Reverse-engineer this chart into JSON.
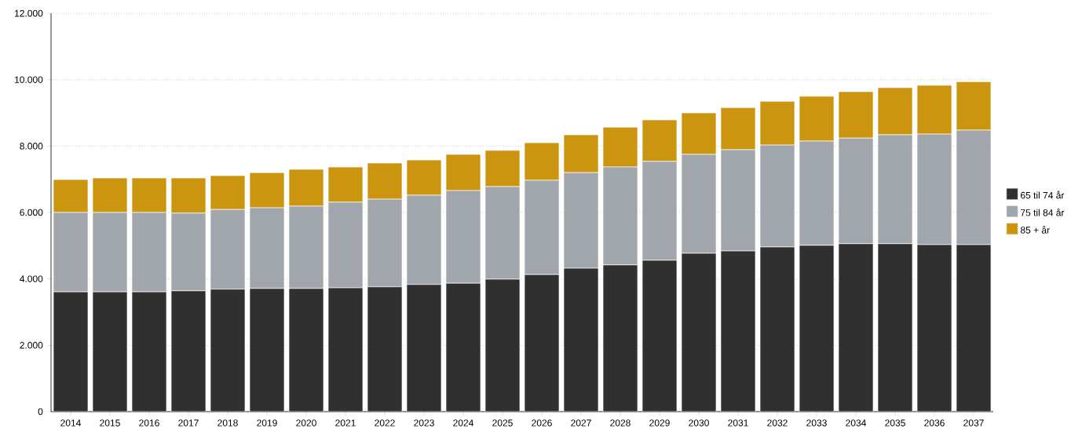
{
  "chart_data": {
    "type": "bar",
    "stacked": true,
    "categories": [
      "2014",
      "2015",
      "2016",
      "2017",
      "2018",
      "2019",
      "2020",
      "2021",
      "2022",
      "2023",
      "2024",
      "2025",
      "2026",
      "2027",
      "2028",
      "2029",
      "2030",
      "2031",
      "2032",
      "2033",
      "2034",
      "2035",
      "2036",
      "2037"
    ],
    "series": [
      {
        "name": "65 til 74 år",
        "color": "#303030",
        "values": [
          3610,
          3610,
          3610,
          3640,
          3690,
          3710,
          3710,
          3730,
          3760,
          3830,
          3870,
          3990,
          4130,
          4320,
          4420,
          4560,
          4770,
          4840,
          4960,
          5010,
          5060,
          5060,
          5030,
          5030
        ]
      },
      {
        "name": "75 til 84 år",
        "color": "#a0a6ab",
        "values": [
          2390,
          2390,
          2390,
          2340,
          2400,
          2430,
          2480,
          2580,
          2640,
          2690,
          2790,
          2790,
          2840,
          2880,
          2950,
          2980,
          2980,
          3050,
          3070,
          3140,
          3180,
          3280,
          3330,
          3450
        ]
      },
      {
        "name": "85 + år",
        "color": "#cb9510",
        "values": [
          990,
          1040,
          1040,
          1060,
          1020,
          1060,
          1110,
          1060,
          1090,
          1060,
          1090,
          1090,
          1130,
          1140,
          1200,
          1250,
          1250,
          1270,
          1320,
          1350,
          1400,
          1420,
          1470,
          1460
        ]
      }
    ],
    "ylim": [
      0,
      12000
    ],
    "yticks": [
      0,
      {
        "value": 2000,
        "label": "2.000"
      },
      {
        "value": 4000,
        "label": "4.000"
      },
      {
        "value": 6000,
        "label": "6.000"
      },
      {
        "value": 8000,
        "label": "8.000"
      },
      {
        "value": 10000,
        "label": "10.000"
      },
      {
        "value": 12000,
        "label": "12.000"
      }
    ],
    "grid": "y",
    "legend": "right"
  }
}
